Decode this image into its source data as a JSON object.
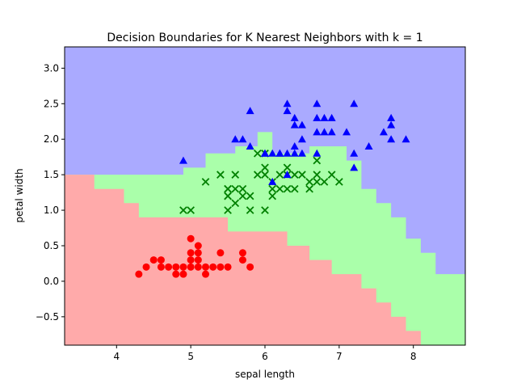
{
  "chart_data": {
    "type": "scatter",
    "title": "Decision Boundaries for K Nearest Neighbors with k = 1",
    "xlabel": "sepal length",
    "ylabel": "petal width",
    "xlim": [
      3.3,
      8.7
    ],
    "ylim": [
      -0.9,
      3.3
    ],
    "xticks": [
      4,
      5,
      6,
      7,
      8
    ],
    "yticks": [
      -0.5,
      0.0,
      0.5,
      1.0,
      1.5,
      2.0,
      2.5,
      3.0
    ],
    "xtick_labels": [
      "4",
      "5",
      "6",
      "7",
      "8"
    ],
    "ytick_labels": [
      "−0.5",
      "0.0",
      "0.5",
      "1.0",
      "1.5",
      "2.0",
      "2.5",
      "3.0"
    ],
    "grid": false,
    "colors": {
      "region_red": "#ffaaaa",
      "region_green": "#aaffaa",
      "region_blue": "#aaaaff",
      "red": "#ff0000",
      "green": "#008000",
      "blue": "#0000ff"
    },
    "regions": {
      "blue_base": true,
      "green_upper_boundary": [
        [
          3.3,
          1.5
        ],
        [
          3.7,
          1.5
        ],
        [
          3.7,
          1.5
        ],
        [
          4.9,
          1.5
        ],
        [
          4.9,
          1.6
        ],
        [
          5.2,
          1.6
        ],
        [
          5.2,
          1.8
        ],
        [
          5.6,
          1.8
        ],
        [
          5.6,
          1.9
        ],
        [
          5.9,
          1.9
        ],
        [
          5.9,
          2.1
        ],
        [
          6.1,
          2.1
        ],
        [
          6.1,
          1.8
        ],
        [
          6.6,
          1.8
        ],
        [
          6.6,
          1.9
        ],
        [
          7.1,
          1.9
        ],
        [
          7.1,
          1.7
        ],
        [
          7.3,
          1.7
        ],
        [
          7.3,
          1.3
        ],
        [
          7.5,
          1.3
        ],
        [
          7.5,
          1.1
        ],
        [
          7.7,
          1.1
        ],
        [
          7.7,
          0.9
        ],
        [
          7.9,
          0.9
        ],
        [
          7.9,
          0.6
        ],
        [
          8.1,
          0.6
        ],
        [
          8.1,
          0.4
        ],
        [
          8.3,
          0.4
        ],
        [
          8.3,
          0.1
        ],
        [
          8.5,
          0.1
        ],
        [
          8.7,
          0.1
        ],
        [
          8.7,
          -0.9
        ]
      ],
      "red_upper_boundary": [
        [
          3.3,
          1.5
        ],
        [
          3.7,
          1.5
        ],
        [
          3.7,
          1.3
        ],
        [
          4.1,
          1.3
        ],
        [
          4.1,
          1.1
        ],
        [
          4.3,
          1.1
        ],
        [
          4.3,
          0.9
        ],
        [
          5.5,
          0.9
        ],
        [
          5.5,
          0.7
        ],
        [
          6.3,
          0.7
        ],
        [
          6.3,
          0.5
        ],
        [
          6.6,
          0.5
        ],
        [
          6.6,
          0.3
        ],
        [
          6.9,
          0.3
        ],
        [
          6.9,
          0.1
        ],
        [
          7.3,
          0.1
        ],
        [
          7.3,
          -0.1
        ],
        [
          7.5,
          -0.1
        ],
        [
          7.5,
          -0.3
        ],
        [
          7.7,
          -0.3
        ],
        [
          7.7,
          -0.5
        ],
        [
          7.9,
          -0.5
        ],
        [
          7.9,
          -0.7
        ],
        [
          8.1,
          -0.7
        ],
        [
          8.1,
          -0.9
        ]
      ]
    },
    "series": [
      {
        "marker": "circle",
        "color": "#ff0000",
        "points": [
          [
            4.3,
            0.1
          ],
          [
            4.4,
            0.2
          ],
          [
            4.5,
            0.3
          ],
          [
            4.6,
            0.2
          ],
          [
            4.6,
            0.3
          ],
          [
            4.7,
            0.2
          ],
          [
            4.8,
            0.2
          ],
          [
            4.8,
            0.1
          ],
          [
            4.9,
            0.2
          ],
          [
            4.9,
            0.1
          ],
          [
            5.0,
            0.2
          ],
          [
            5.0,
            0.4
          ],
          [
            5.0,
            0.6
          ],
          [
            5.0,
            0.3
          ],
          [
            5.1,
            0.2
          ],
          [
            5.1,
            0.4
          ],
          [
            5.1,
            0.3
          ],
          [
            5.1,
            0.5
          ],
          [
            5.2,
            0.2
          ],
          [
            5.2,
            0.1
          ],
          [
            5.3,
            0.2
          ],
          [
            5.4,
            0.4
          ],
          [
            5.4,
            0.2
          ],
          [
            5.5,
            0.2
          ],
          [
            5.7,
            0.4
          ],
          [
            5.7,
            0.3
          ],
          [
            5.8,
            0.2
          ]
        ]
      },
      {
        "marker": "x",
        "color": "#008000",
        "points": [
          [
            4.9,
            1.0
          ],
          [
            5.0,
            1.0
          ],
          [
            5.2,
            1.4
          ],
          [
            5.4,
            1.5
          ],
          [
            5.5,
            1.2
          ],
          [
            5.5,
            1.3
          ],
          [
            5.6,
            1.3
          ],
          [
            5.6,
            1.5
          ],
          [
            5.6,
            1.1
          ],
          [
            5.7,
            1.3
          ],
          [
            5.5,
            1.0
          ],
          [
            5.8,
            1.2
          ],
          [
            5.8,
            1.0
          ],
          [
            5.9,
            1.5
          ],
          [
            6.0,
            1.0
          ],
          [
            6.0,
            1.5
          ],
          [
            6.0,
            1.6
          ],
          [
            6.1,
            1.3
          ],
          [
            6.1,
            1.2
          ],
          [
            6.1,
            1.4
          ],
          [
            6.2,
            1.5
          ],
          [
            6.3,
            1.3
          ],
          [
            6.3,
            1.6
          ],
          [
            6.4,
            1.5
          ],
          [
            6.4,
            1.3
          ],
          [
            6.5,
            1.5
          ],
          [
            6.6,
            1.3
          ],
          [
            6.6,
            1.4
          ],
          [
            6.7,
            1.5
          ],
          [
            6.7,
            1.4
          ],
          [
            6.8,
            1.4
          ],
          [
            6.9,
            1.5
          ],
          [
            7.0,
            1.4
          ],
          [
            5.7,
            1.2
          ],
          [
            5.5,
            1.3
          ],
          [
            6.7,
            1.7
          ],
          [
            6.0,
            1.8
          ],
          [
            6.2,
            1.3
          ],
          [
            6.3,
            1.5
          ],
          [
            5.9,
            1.8
          ],
          [
            5.5,
            1.2
          ]
        ]
      },
      {
        "marker": "triangle",
        "color": "#0000ff",
        "points": [
          [
            4.9,
            1.7
          ],
          [
            5.6,
            2.0
          ],
          [
            5.7,
            2.0
          ],
          [
            5.8,
            2.4
          ],
          [
            5.8,
            1.9
          ],
          [
            6.0,
            1.8
          ],
          [
            6.1,
            1.8
          ],
          [
            6.2,
            1.8
          ],
          [
            6.3,
            1.8
          ],
          [
            6.3,
            2.5
          ],
          [
            6.3,
            2.4
          ],
          [
            6.4,
            2.3
          ],
          [
            6.4,
            2.2
          ],
          [
            6.4,
            1.9
          ],
          [
            6.4,
            1.8
          ],
          [
            6.5,
            2.0
          ],
          [
            6.5,
            2.2
          ],
          [
            6.5,
            1.8
          ],
          [
            6.7,
            2.5
          ],
          [
            6.7,
            2.3
          ],
          [
            6.7,
            2.1
          ],
          [
            6.7,
            1.8
          ],
          [
            6.8,
            2.1
          ],
          [
            6.8,
            2.3
          ],
          [
            6.9,
            2.3
          ],
          [
            6.9,
            2.1
          ],
          [
            7.1,
            2.1
          ],
          [
            7.2,
            2.5
          ],
          [
            7.2,
            1.8
          ],
          [
            7.2,
            1.6
          ],
          [
            7.4,
            1.9
          ],
          [
            7.6,
            2.1
          ],
          [
            7.7,
            2.3
          ],
          [
            7.7,
            2.2
          ],
          [
            7.7,
            2.0
          ],
          [
            7.9,
            2.0
          ],
          [
            6.1,
            1.4
          ],
          [
            6.3,
            1.5
          ],
          [
            6.0,
            1.8
          ],
          [
            6.2,
            1.8
          ]
        ]
      }
    ]
  }
}
